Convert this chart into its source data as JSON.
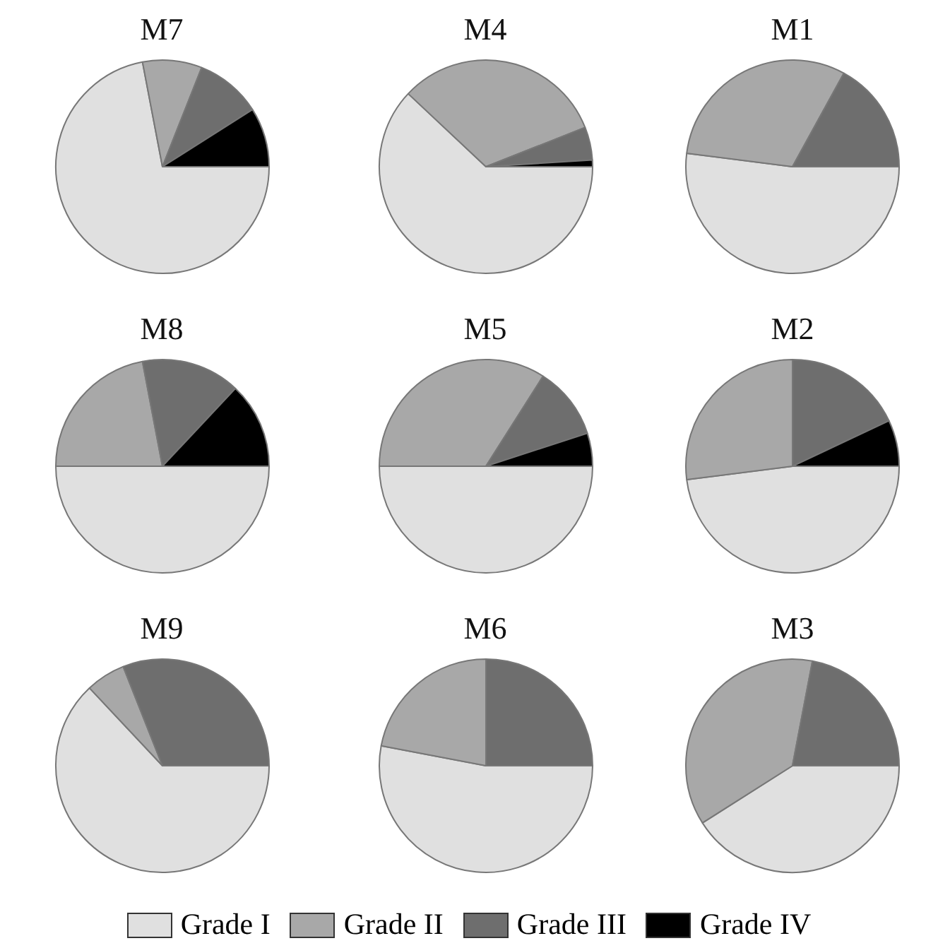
{
  "chart_data": [
    {
      "type": "pie",
      "title": "M7",
      "categories": [
        "Grade I",
        "Grade II",
        "Grade III",
        "Grade IV"
      ],
      "values": [
        72,
        9,
        10,
        9
      ],
      "colors": [
        "#e0e0e0",
        "#a8a8a8",
        "#6e6e6e",
        "#000000"
      ],
      "legend": "bottom"
    },
    {
      "type": "pie",
      "title": "M4",
      "categories": [
        null,
        null,
        null,
        null
      ],
      "values": [
        62,
        32,
        5,
        1
      ],
      "colors": [
        "#e0e0e0",
        "#a8a8a8",
        "#6e6e6e",
        "#000000"
      ]
    },
    {
      "type": "pie",
      "title": "M1",
      "categories": [
        null,
        null,
        null,
        null
      ],
      "values": [
        52,
        31,
        17,
        0
      ],
      "colors": [
        "#e0e0e0",
        "#a8a8a8",
        "#6e6e6e",
        "#000000"
      ]
    },
    {
      "type": "pie",
      "title": "M8",
      "categories": [
        null,
        null,
        null,
        null
      ],
      "values": [
        50,
        22,
        15,
        13
      ],
      "colors": [
        "#e0e0e0",
        "#a8a8a8",
        "#6e6e6e",
        "#000000"
      ]
    },
    {
      "type": "pie",
      "title": "M5",
      "categories": [
        null,
        null,
        null,
        null
      ],
      "values": [
        50,
        34,
        11,
        5
      ],
      "colors": [
        "#e0e0e0",
        "#a8a8a8",
        "#6e6e6e",
        "#000000"
      ]
    },
    {
      "type": "pie",
      "title": "M2",
      "categories": [
        null,
        null,
        null,
        null
      ],
      "values": [
        48,
        27,
        18,
        7
      ],
      "colors": [
        "#e0e0e0",
        "#a8a8a8",
        "#6e6e6e",
        "#000000"
      ]
    },
    {
      "type": "pie",
      "title": "M9",
      "categories": [
        null,
        null,
        null,
        null
      ],
      "values": [
        63,
        6,
        31,
        0
      ],
      "colors": [
        "#e0e0e0",
        "#a8a8a8",
        "#6e6e6e",
        "#000000"
      ]
    },
    {
      "type": "pie",
      "title": "M6",
      "categories": [
        null,
        null,
        null,
        null
      ],
      "values": [
        53,
        22,
        25,
        0
      ],
      "colors": [
        "#e0e0e0",
        "#a8a8a8",
        "#6e6e6e",
        "#000000"
      ]
    },
    {
      "type": "pie",
      "title": "M3",
      "categories": [
        null,
        null,
        null,
        null
      ],
      "values": [
        41,
        37,
        22,
        0
      ],
      "colors": [
        "#e0e0e0",
        "#a8a8a8",
        "#6e6e6e",
        "#000000"
      ]
    }
  ]
}
